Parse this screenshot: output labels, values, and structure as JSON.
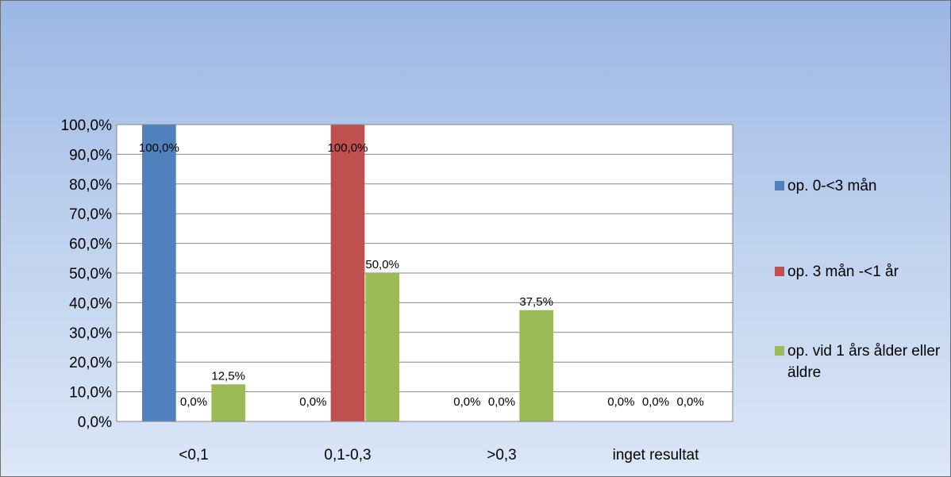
{
  "chart_data": {
    "type": "bar",
    "title": "",
    "xlabel": "",
    "ylabel": "",
    "categories": [
      "<0,1",
      "0,1-0,3",
      ">0,3",
      "inget resultat"
    ],
    "ylim": [
      0,
      100
    ],
    "y_ticks": [
      "0,0%",
      "10,0%",
      "20,0%",
      "30,0%",
      "40,0%",
      "50,0%",
      "60,0%",
      "70,0%",
      "80,0%",
      "90,0%",
      "100,0%"
    ],
    "grid": true,
    "legend_position": "right",
    "series": [
      {
        "name": "op. 0-<3 mån",
        "color": "#4f81bd",
        "values": [
          100,
          0,
          0,
          0
        ],
        "labels": [
          "100,0%",
          "0,0%",
          "0,0%",
          "0,0%"
        ]
      },
      {
        "name": "op. 3 mån -<1 år",
        "color": "#c0504d",
        "values": [
          0,
          100,
          0,
          0
        ],
        "labels": [
          "0,0%",
          "100,0%",
          "0,0%",
          "0,0%"
        ]
      },
      {
        "name": "op. vid 1 års ålder eller äldre",
        "color": "#9bbb59",
        "values": [
          12.5,
          50,
          37.5,
          0
        ],
        "labels": [
          "12,5%",
          "50,0%",
          "37,5%",
          "0,0%"
        ]
      }
    ]
  }
}
